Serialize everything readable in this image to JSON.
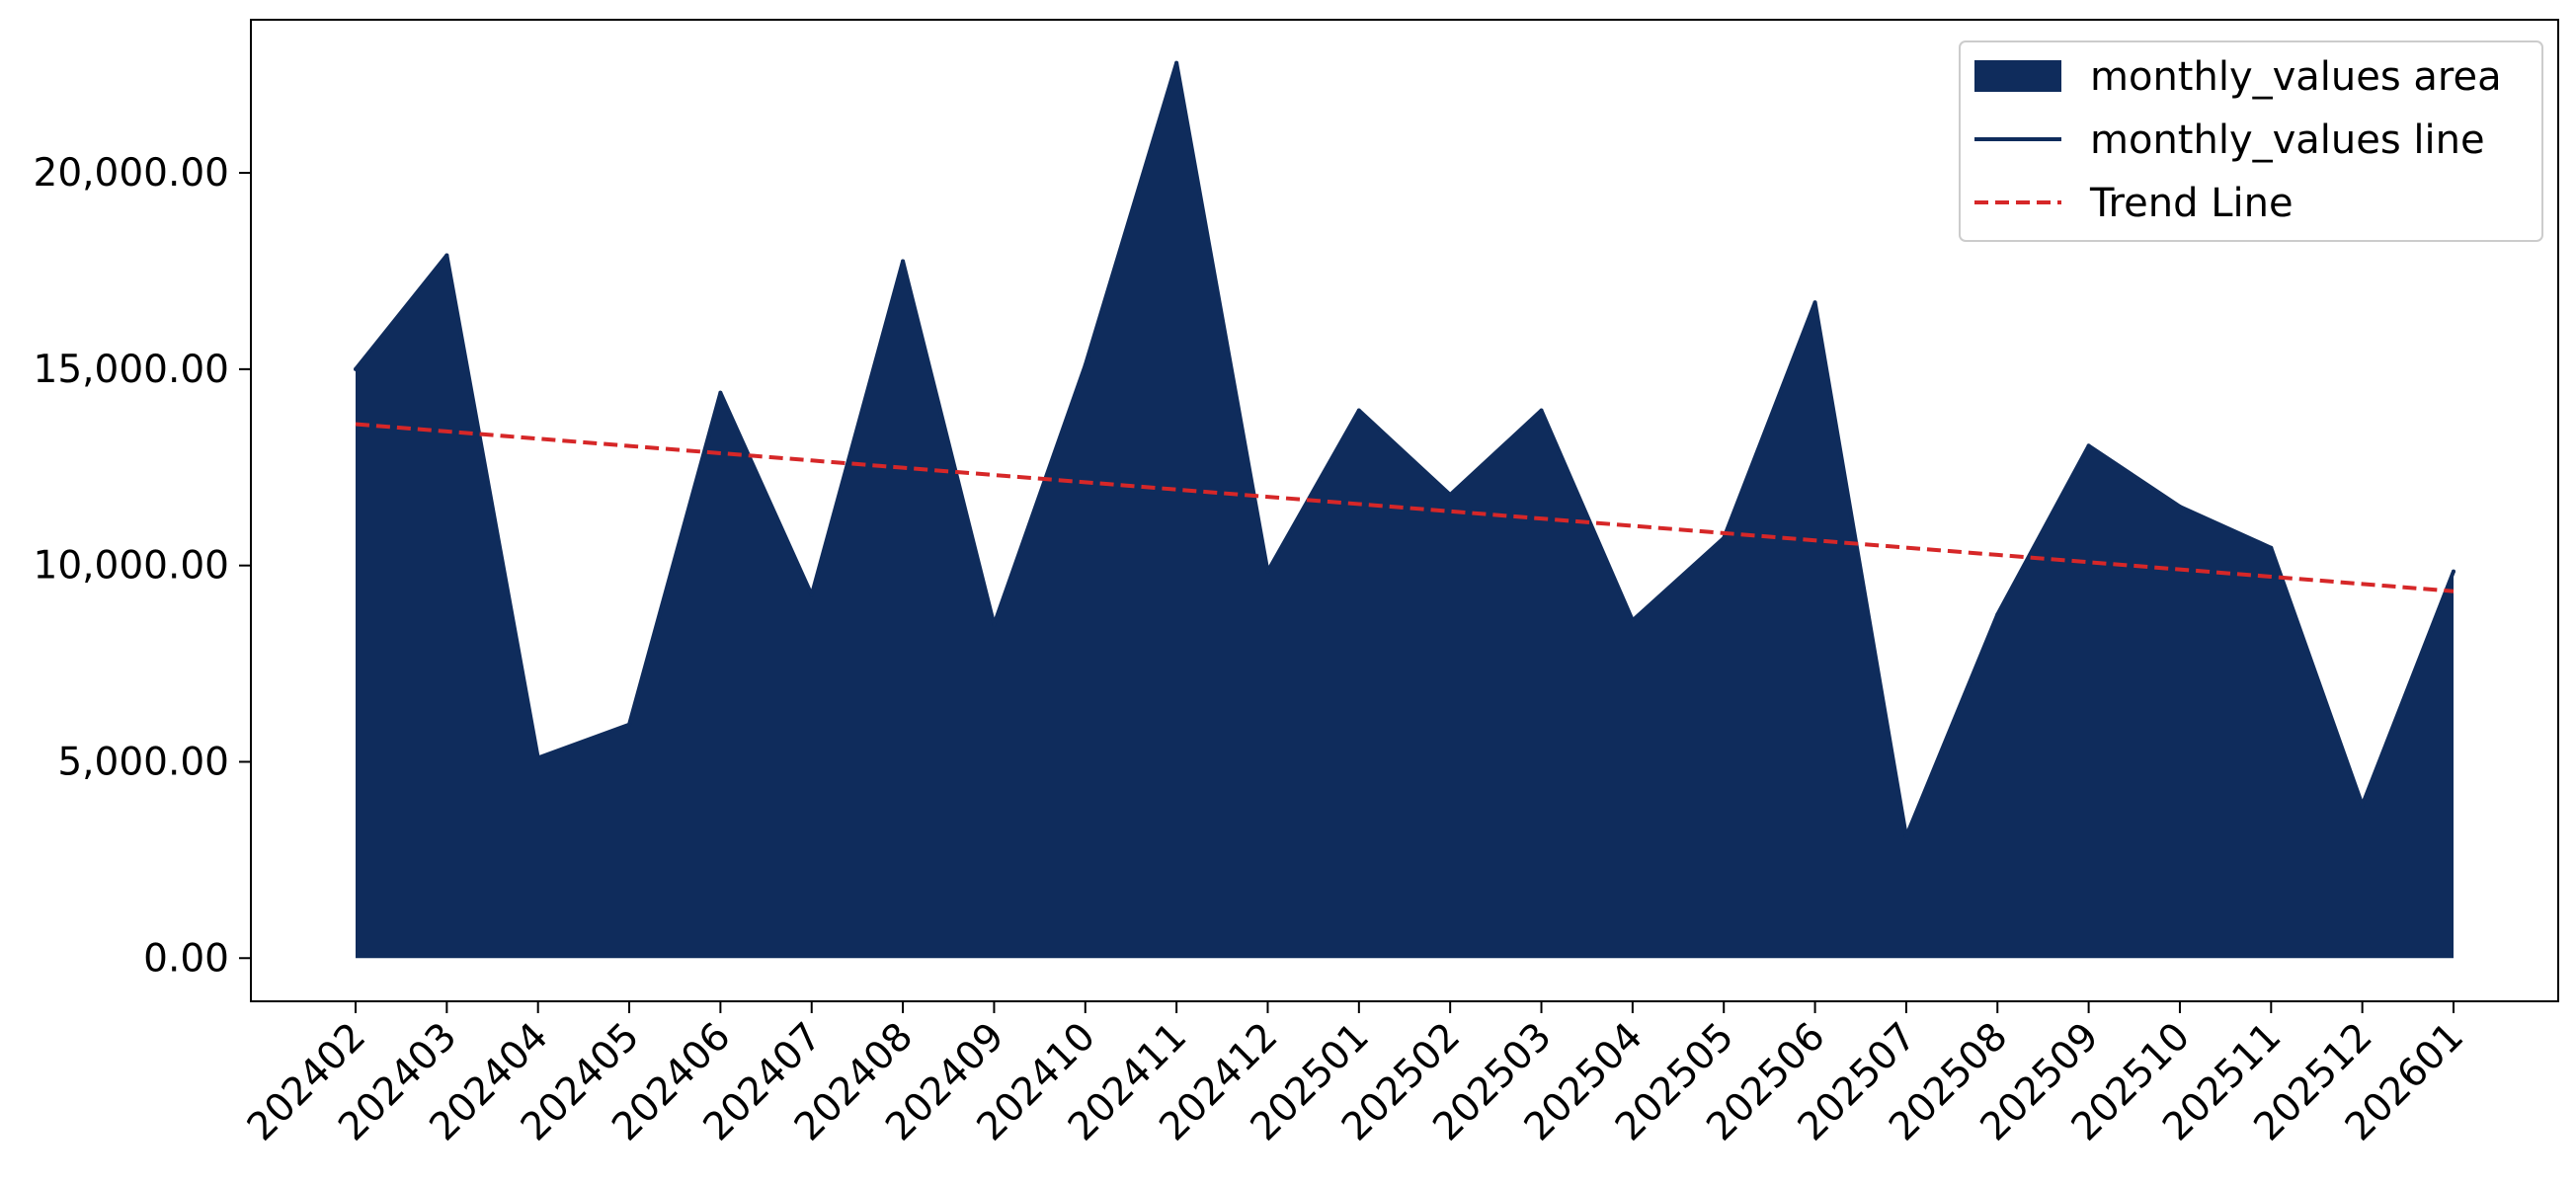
{
  "chart_data": {
    "type": "area",
    "categories": [
      "202402",
      "202403",
      "202404",
      "202405",
      "202406",
      "202407",
      "202408",
      "202409",
      "202410",
      "202411",
      "202412",
      "202501",
      "202502",
      "202503",
      "202504",
      "202505",
      "202506",
      "202507",
      "202508",
      "202509",
      "202510",
      "202511",
      "202512",
      "202601"
    ],
    "series": [
      {
        "name": "monthly_values area",
        "kind": "area",
        "values": [
          15000,
          17900,
          5100,
          5950,
          14400,
          9250,
          17750,
          8500,
          15100,
          22800,
          9850,
          13950,
          11800,
          13950,
          8600,
          10700,
          16700,
          3100,
          8750,
          13050,
          11500,
          10450,
          3900,
          9850
        ]
      },
      {
        "name": "monthly_values line",
        "kind": "line",
        "values": [
          15000,
          17900,
          5100,
          5950,
          14400,
          9250,
          17750,
          8500,
          15100,
          22800,
          9850,
          13950,
          11800,
          13950,
          8600,
          10700,
          16700,
          3100,
          8750,
          13050,
          11500,
          10450,
          3900,
          9850
        ]
      },
      {
        "name": "Trend Line",
        "kind": "trend",
        "values": [
          13600,
          13415,
          13230,
          13045,
          12860,
          12675,
          12490,
          12305,
          12120,
          11935,
          11750,
          11565,
          11380,
          11195,
          11010,
          10825,
          10640,
          10455,
          10270,
          10085,
          9900,
          9715,
          9530,
          9345
        ]
      }
    ],
    "yticks": [
      0,
      5000,
      10000,
      15000,
      20000
    ],
    "ytick_labels": [
      "0.00",
      "5,000.00",
      "10,000.00",
      "15,000.00",
      "20,000.00"
    ],
    "ylim": [
      -1100,
      23900
    ],
    "title": "",
    "xlabel": "",
    "ylabel": "",
    "grid": false,
    "legend_position": "upper-right",
    "colors": {
      "area": "#0f2c5c",
      "line": "#0f2c5c",
      "trend": "#d62728",
      "axis": "#000000"
    }
  }
}
